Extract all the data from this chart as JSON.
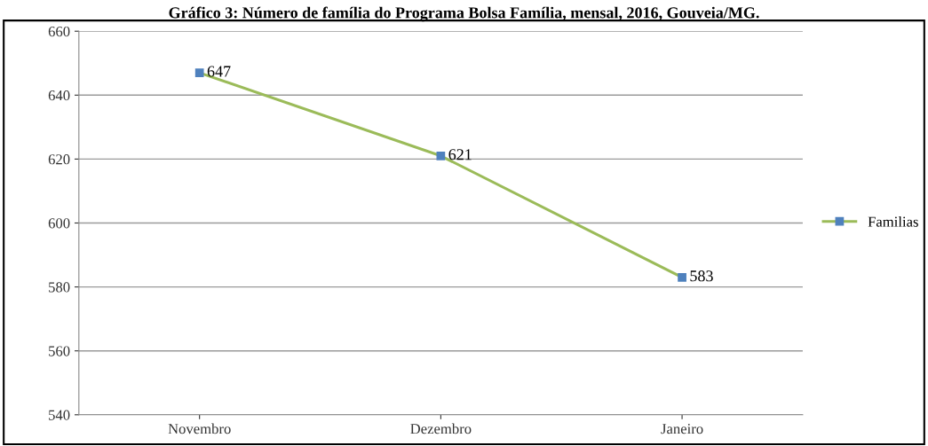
{
  "chart_data": {
    "type": "line",
    "title": "Gráfico 3: Número de família do Programa Bolsa Família, mensal, 2016, Gouveia/MG.",
    "categories": [
      "Novembro",
      "Dezembro",
      "Janeiro"
    ],
    "series": [
      {
        "name": "Familias",
        "color": "#9bbb59",
        "values": [
          647,
          621,
          583
        ]
      }
    ],
    "ylim": [
      540,
      660
    ],
    "yticks": [
      540,
      560,
      580,
      600,
      620,
      640,
      660
    ],
    "grid": "y",
    "legend": "right",
    "marker": "square",
    "line_style": "solid",
    "data_labels": true
  }
}
